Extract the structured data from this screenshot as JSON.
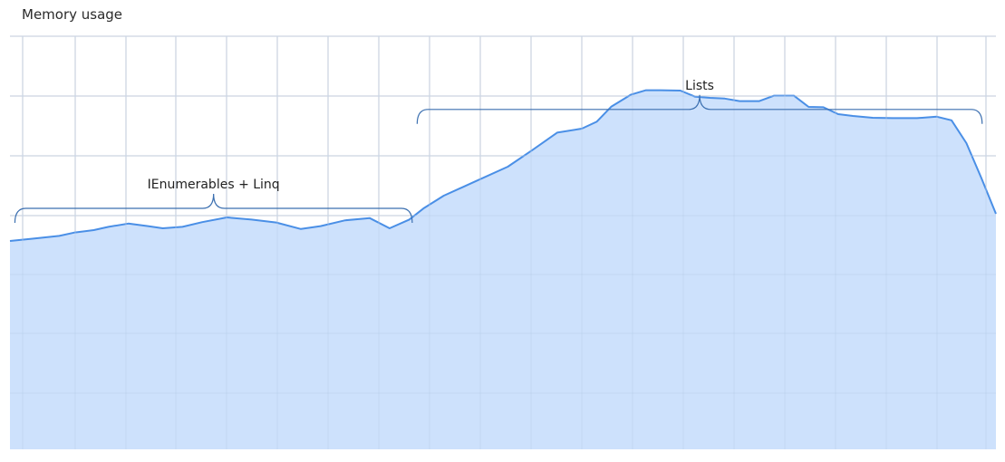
{
  "title": "Memory usage",
  "chart_data": {
    "type": "area",
    "title": "Memory usage",
    "xlabel": "",
    "ylabel": "",
    "xlim": [
      0,
      100
    ],
    "ylim": [
      0,
      100
    ],
    "grid": true,
    "x": [
      0,
      2.5,
      5,
      6.5,
      8.5,
      10,
      12,
      14,
      15.5,
      17.5,
      19.5,
      22,
      24.5,
      27,
      29.5,
      31.5,
      34,
      36.5,
      38.5,
      40.5,
      42,
      44,
      47,
      50.5,
      53,
      55.5,
      58,
      59.5,
      61,
      63,
      64.5,
      66,
      68,
      69.5,
      71,
      72.5,
      74,
      76,
      77.5,
      79.5,
      81,
      82.5,
      84,
      85.5,
      87.5,
      89.5,
      92,
      94,
      95.5,
      97,
      98.5,
      100
    ],
    "y": [
      57.5,
      58.2,
      58.9,
      59.8,
      60.5,
      61.4,
      62.3,
      61.6,
      61.0,
      61.4,
      62.7,
      64.0,
      63.4,
      62.6,
      60.8,
      61.6,
      63.2,
      63.8,
      61.0,
      63.4,
      66.6,
      70.0,
      73.7,
      78.0,
      82.6,
      87.4,
      88.5,
      90.4,
      94.6,
      97.9,
      99.1,
      99.1,
      99.0,
      97.3,
      97.0,
      96.8,
      96.1,
      96.1,
      97.6,
      97.6,
      94.5,
      94.4,
      92.5,
      92.0,
      91.5,
      91.4,
      91.4,
      91.8,
      90.8,
      84.5,
      75.0,
      65.0
    ],
    "annotations": [
      {
        "text": "IEnumerables + Linq",
        "x_start": 0.5,
        "x_end": 40.8,
        "level": 66.5
      },
      {
        "text": "Lists",
        "x_start": 41.3,
        "x_end": 98.6,
        "level": 93.8
      }
    ],
    "colors": {
      "line": "#4a8fe6",
      "fill": "#cadffc",
      "grid": "#e3e3e3",
      "bracket": "#3b6fb0"
    }
  }
}
